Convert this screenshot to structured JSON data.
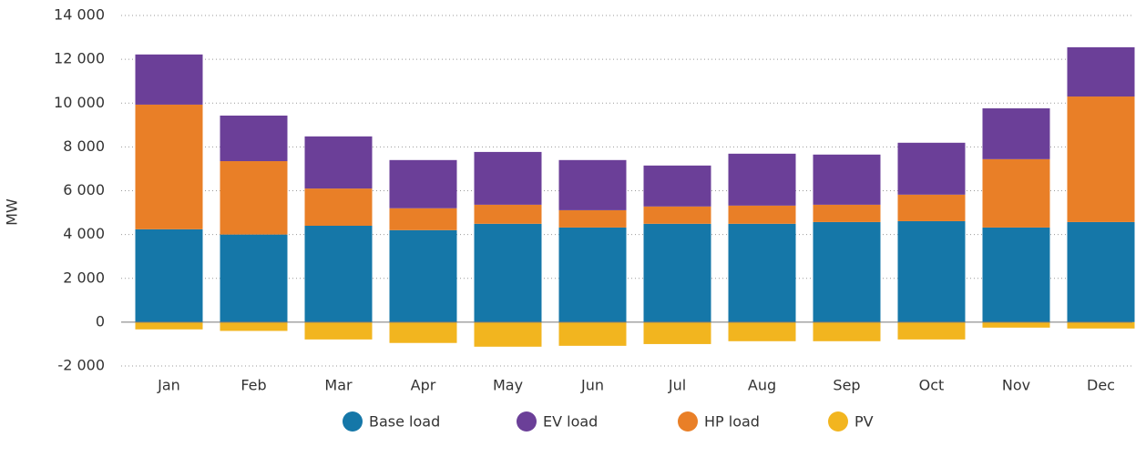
{
  "chart_data": {
    "type": "stacked_bar",
    "y_label": "MW",
    "categories": [
      "Jan",
      "Feb",
      "Mar",
      "Apr",
      "May",
      "Jun",
      "Jul",
      "Aug",
      "Sep",
      "Oct",
      "Nov",
      "Dec"
    ],
    "series": [
      {
        "name": "Base load",
        "color": "#1577a8",
        "values": [
          4240,
          4000,
          4400,
          4200,
          4490,
          4320,
          4490,
          4490,
          4570,
          4610,
          4320,
          4570
        ]
      },
      {
        "name": "EV load",
        "color": "#6b3f98",
        "values": [
          2290,
          2080,
          2380,
          2200,
          2410,
          2290,
          1870,
          2370,
          2290,
          2370,
          2320,
          2250
        ]
      },
      {
        "name": "HP load",
        "color": "#e97f27",
        "values": [
          5690,
          3350,
          1700,
          1000,
          870,
          790,
          790,
          830,
          790,
          1210,
          3120,
          5730
        ]
      },
      {
        "name": "PV",
        "color": "#f2b51f",
        "values": [
          -330,
          -400,
          -790,
          -950,
          -1120,
          -1080,
          -1000,
          -870,
          -870,
          -790,
          -250,
          -290
        ]
      }
    ],
    "ylim": [
      -2000,
      14000
    ],
    "yticks": [
      {
        "value": -2000,
        "label": "-2 000"
      },
      0,
      {
        "value": 2000,
        "label": "2 000"
      },
      {
        "value": 4000,
        "label": "4 000"
      },
      {
        "value": 6000,
        "label": "6 000"
      },
      {
        "value": 8000,
        "label": "8 000"
      },
      {
        "value": 10000,
        "label": "10 000"
      },
      {
        "value": 12000,
        "label": "12 000"
      },
      {
        "value": 14000,
        "label": "14 000"
      }
    ],
    "grid": true
  }
}
